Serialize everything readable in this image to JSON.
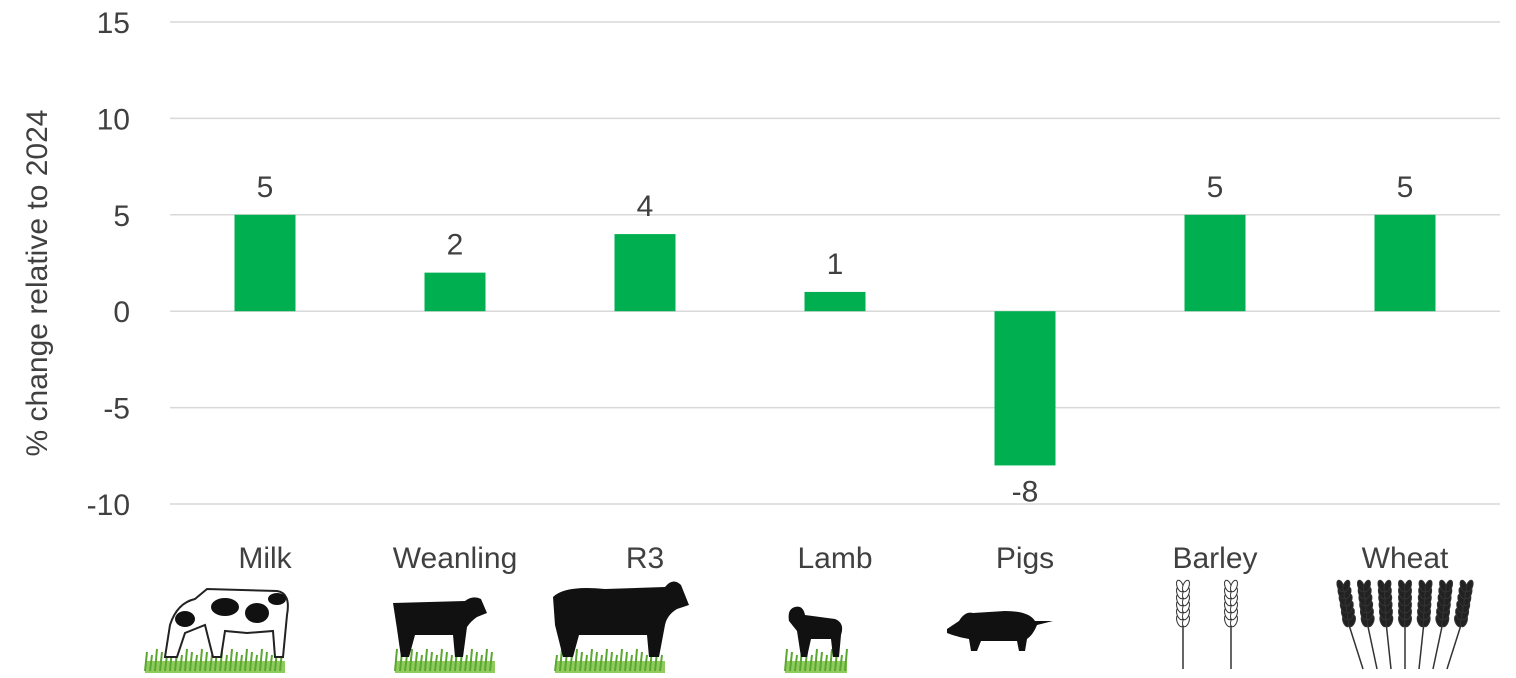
{
  "chart_data": {
    "type": "bar",
    "ylabel": "% change relative to 2024",
    "xlabel": "",
    "ylim": [
      -10,
      15
    ],
    "yticks": [
      15,
      10,
      5,
      0,
      -5,
      -10
    ],
    "grid": true,
    "categories": [
      "Milk",
      "Weanling",
      "R3",
      "Lamb",
      "Pigs",
      "Barley",
      "Wheat"
    ],
    "values": [
      5,
      2,
      4,
      1,
      -8,
      5,
      5
    ],
    "data_labels": [
      "5",
      "2",
      "4",
      "1",
      "-8",
      "5",
      "5"
    ],
    "icons": [
      "dairy-cow-icon",
      "weanling-calf-icon",
      "beef-cattle-icon",
      "lamb-icon",
      "pig-icon",
      "barley-icon",
      "wheat-icon"
    ],
    "colors": {
      "bar": "#00b050",
      "grid": "#d9d9d9",
      "text": "#404040",
      "grass": "#7cc242"
    }
  }
}
